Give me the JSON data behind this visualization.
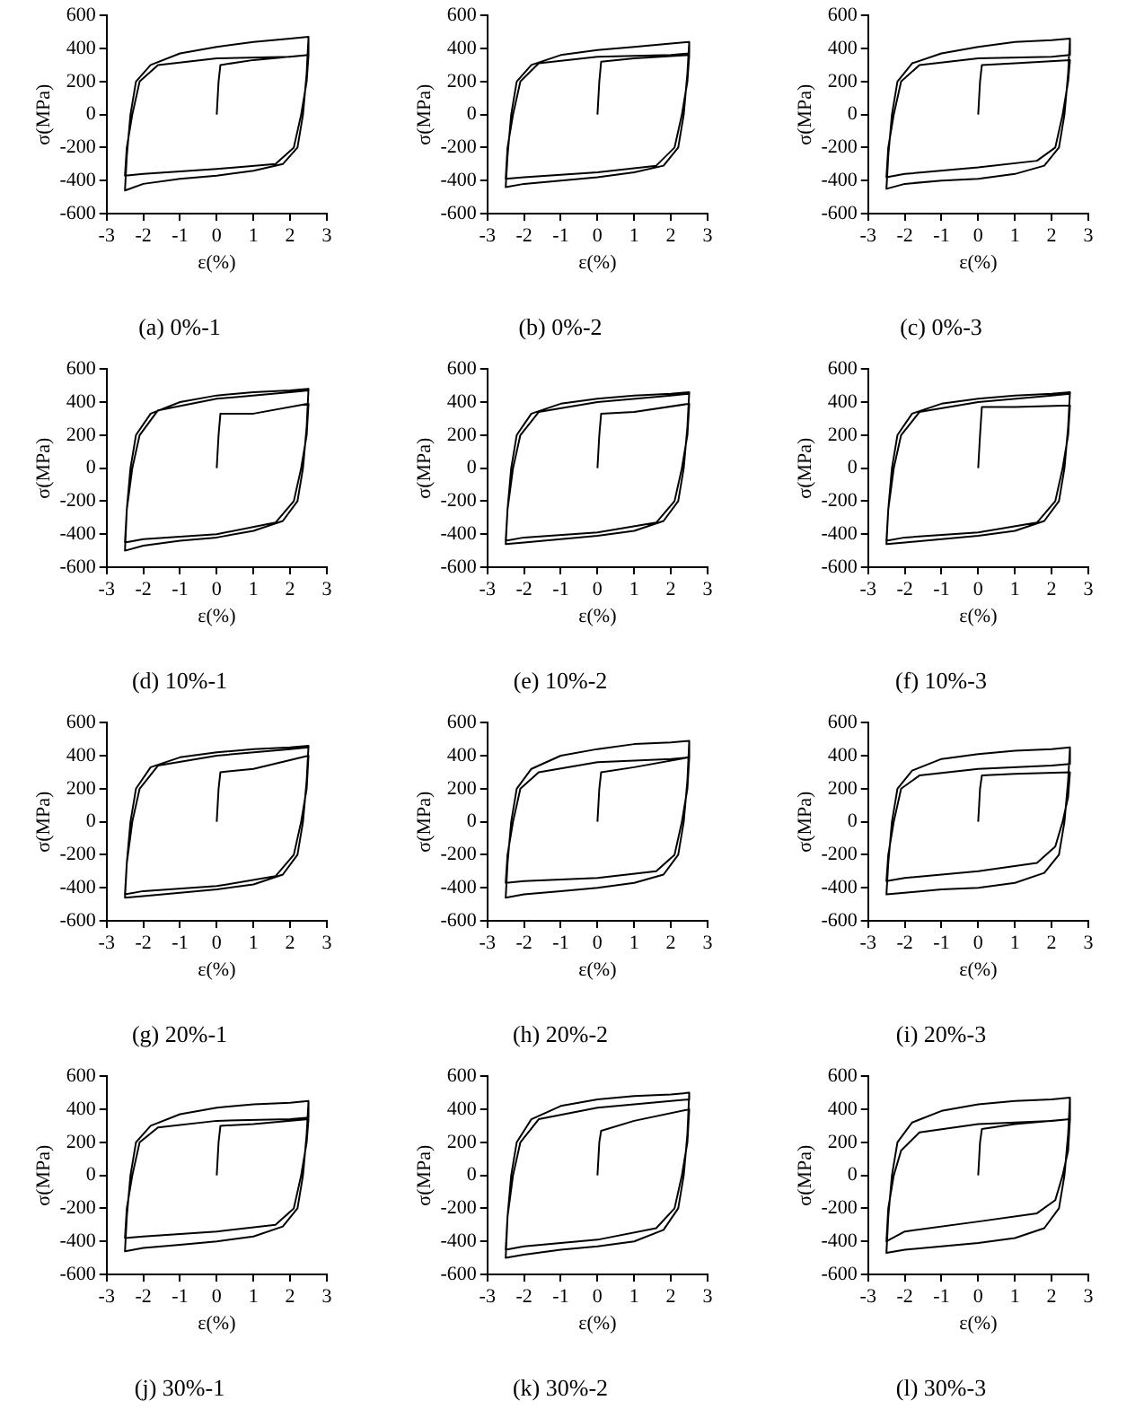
{
  "chart_data": [
    {
      "type": "line",
      "title": "(a) 0%-1",
      "xlabel": "ε(%)",
      "ylabel": "σ(MPa)",
      "xlim": [
        -3,
        3
      ],
      "ylim": [
        -600,
        600
      ],
      "xticks": [
        -3,
        -2,
        -1,
        0,
        1,
        2,
        3
      ],
      "yticks": [
        -600,
        -400,
        -200,
        0,
        200,
        400,
        600
      ],
      "grid": false,
      "legend": false,
      "marker": "none",
      "line_style": "solid",
      "series": [
        {
          "color": "#000000",
          "x": [
            0,
            0.05,
            0.1,
            1,
            2.5,
            2.45,
            2.3,
            2.1,
            1.6,
            0,
            -2,
            -2.5,
            -2.45,
            -2.3,
            -2.1,
            -1.6,
            0,
            2,
            2.5,
            2.5,
            2.45,
            2.35,
            2.2,
            1.8,
            1,
            0,
            -1,
            -2,
            -2.5,
            -2.45,
            -2.35,
            -2.2,
            -1.8,
            -1,
            0,
            1,
            2,
            2.5
          ],
          "values": [
            0,
            200,
            300,
            330,
            360,
            200,
            0,
            -200,
            -300,
            -330,
            -360,
            -370,
            -200,
            0,
            200,
            300,
            340,
            350,
            360,
            470,
            250,
            0,
            -200,
            -300,
            -340,
            -370,
            -390,
            -420,
            -460,
            -250,
            0,
            200,
            300,
            370,
            410,
            440,
            460,
            470
          ]
        }
      ]
    },
    {
      "type": "line",
      "title": "(b) 0%-2",
      "xlabel": "ε(%)",
      "ylabel": "σ(MPa)",
      "xlim": [
        -3,
        3
      ],
      "ylim": [
        -600,
        600
      ],
      "xticks": [
        -3,
        -2,
        -1,
        0,
        1,
        2,
        3
      ],
      "yticks": [
        -600,
        -400,
        -200,
        0,
        200,
        400,
        600
      ],
      "grid": false,
      "legend": false,
      "marker": "none",
      "line_style": "solid",
      "series": [
        {
          "color": "#000000",
          "x": [
            0,
            0.05,
            0.1,
            1,
            2.5,
            2.45,
            2.3,
            2.1,
            1.6,
            0,
            -2,
            -2.5,
            -2.45,
            -2.3,
            -2.1,
            -1.6,
            0,
            2,
            2.5,
            2.5,
            2.45,
            2.35,
            2.2,
            1.8,
            1,
            0,
            -1,
            -2,
            -2.5,
            -2.45,
            -2.35,
            -2.2,
            -1.8,
            -1,
            0,
            1,
            2,
            2.5
          ],
          "values": [
            0,
            200,
            320,
            340,
            360,
            200,
            0,
            -200,
            -310,
            -350,
            -380,
            -390,
            -200,
            0,
            200,
            310,
            350,
            360,
            370,
            440,
            250,
            0,
            -200,
            -310,
            -350,
            -380,
            -400,
            -420,
            -440,
            -250,
            0,
            200,
            300,
            360,
            390,
            410,
            430,
            440
          ]
        }
      ]
    },
    {
      "type": "line",
      "title": "(c) 0%-3",
      "xlabel": "ε(%)",
      "ylabel": "σ(MPa)",
      "xlim": [
        -3,
        3
      ],
      "ylim": [
        -600,
        600
      ],
      "xticks": [
        -3,
        -2,
        -1,
        0,
        1,
        2,
        3
      ],
      "yticks": [
        -600,
        -400,
        -200,
        0,
        200,
        400,
        600
      ],
      "grid": false,
      "legend": false,
      "marker": "none",
      "line_style": "solid",
      "series": [
        {
          "color": "#000000",
          "x": [
            0,
            0.05,
            0.1,
            1,
            2.5,
            2.45,
            2.3,
            2.1,
            1.6,
            0,
            -2,
            -2.5,
            -2.45,
            -2.3,
            -2.1,
            -1.6,
            0,
            2,
            2.5,
            2.5,
            2.45,
            2.35,
            2.2,
            1.8,
            1,
            0,
            -1,
            -2,
            -2.5,
            -2.45,
            -2.35,
            -2.2,
            -1.8,
            -1,
            0,
            1,
            2,
            2.5
          ],
          "values": [
            0,
            200,
            300,
            310,
            330,
            200,
            0,
            -200,
            -280,
            -320,
            -360,
            -380,
            -200,
            0,
            200,
            300,
            340,
            350,
            360,
            460,
            250,
            0,
            -200,
            -310,
            -360,
            -390,
            -400,
            -420,
            -450,
            -250,
            0,
            200,
            310,
            370,
            410,
            440,
            450,
            460
          ]
        }
      ]
    },
    {
      "type": "line",
      "title": "(d) 10%-1",
      "xlabel": "ε(%)",
      "ylabel": "σ(MPa)",
      "xlim": [
        -3,
        3
      ],
      "ylim": [
        -600,
        600
      ],
      "xticks": [
        -3,
        -2,
        -1,
        0,
        1,
        2,
        3
      ],
      "yticks": [
        -600,
        -400,
        -200,
        0,
        200,
        400,
        600
      ],
      "grid": false,
      "legend": false,
      "marker": "none",
      "line_style": "solid",
      "series": [
        {
          "color": "#000000",
          "x": [
            0,
            0.05,
            0.1,
            1,
            2.5,
            2.45,
            2.3,
            2.1,
            1.6,
            0,
            -2,
            -2.5,
            -2.45,
            -2.3,
            -2.1,
            -1.6,
            0,
            2,
            2.5,
            2.5,
            2.45,
            2.35,
            2.2,
            1.8,
            1,
            0,
            -1,
            -2,
            -2.5,
            -2.45,
            -2.35,
            -2.2,
            -1.8,
            -1,
            0,
            1,
            2,
            2.5
          ],
          "values": [
            0,
            200,
            330,
            330,
            390,
            200,
            0,
            -200,
            -330,
            -400,
            -430,
            -450,
            -250,
            0,
            200,
            350,
            420,
            460,
            470,
            480,
            250,
            0,
            -200,
            -320,
            -380,
            -420,
            -440,
            -470,
            -500,
            -250,
            0,
            200,
            330,
            400,
            440,
            460,
            470,
            480
          ]
        }
      ]
    },
    {
      "type": "line",
      "title": "(e) 10%-2",
      "xlabel": "ε(%)",
      "ylabel": "σ(MPa)",
      "xlim": [
        -3,
        3
      ],
      "ylim": [
        -600,
        600
      ],
      "xticks": [
        -3,
        -2,
        -1,
        0,
        1,
        2,
        3
      ],
      "yticks": [
        -600,
        -400,
        -200,
        0,
        200,
        400,
        600
      ],
      "grid": false,
      "legend": false,
      "marker": "none",
      "line_style": "solid",
      "series": [
        {
          "color": "#000000",
          "x": [
            0,
            0.05,
            0.1,
            1,
            2.5,
            2.45,
            2.3,
            2.1,
            1.6,
            0,
            -2,
            -2.5,
            -2.45,
            -2.3,
            -2.1,
            -1.6,
            0,
            2,
            2.5,
            2.5,
            2.45,
            2.35,
            2.2,
            1.8,
            1,
            0,
            -1,
            -2,
            -2.5,
            -2.45,
            -2.35,
            -2.2,
            -1.8,
            -1,
            0,
            1,
            2,
            2.5
          ],
          "values": [
            0,
            200,
            330,
            340,
            390,
            200,
            0,
            -200,
            -330,
            -390,
            -420,
            -440,
            -250,
            0,
            200,
            340,
            400,
            440,
            450,
            460,
            250,
            0,
            -200,
            -320,
            -380,
            -410,
            -430,
            -450,
            -460,
            -250,
            0,
            200,
            330,
            390,
            420,
            440,
            450,
            460
          ]
        }
      ]
    },
    {
      "type": "line",
      "title": "(f) 10%-3",
      "xlabel": "ε(%)",
      "ylabel": "σ(MPa)",
      "xlim": [
        -3,
        3
      ],
      "ylim": [
        -600,
        600
      ],
      "xticks": [
        -3,
        -2,
        -1,
        0,
        1,
        2,
        3
      ],
      "yticks": [
        -600,
        -400,
        -200,
        0,
        200,
        400,
        600
      ],
      "grid": false,
      "legend": false,
      "marker": "none",
      "line_style": "solid",
      "series": [
        {
          "color": "#000000",
          "x": [
            0,
            0.05,
            0.1,
            1,
            2.5,
            2.45,
            2.3,
            2.1,
            1.6,
            0,
            -2,
            -2.5,
            -2.45,
            -2.3,
            -2.1,
            -1.6,
            0,
            2,
            2.5,
            2.5,
            2.45,
            2.35,
            2.2,
            1.8,
            1,
            0,
            -1,
            -2,
            -2.5,
            -2.45,
            -2.35,
            -2.2,
            -1.8,
            -1,
            0,
            1,
            2,
            2.5
          ],
          "values": [
            0,
            200,
            370,
            370,
            380,
            200,
            0,
            -200,
            -330,
            -390,
            -420,
            -440,
            -250,
            0,
            200,
            340,
            400,
            440,
            450,
            460,
            250,
            0,
            -200,
            -320,
            -380,
            -410,
            -430,
            -450,
            -460,
            -250,
            0,
            200,
            330,
            390,
            420,
            440,
            450,
            460
          ]
        }
      ]
    },
    {
      "type": "line",
      "title": "(g) 20%-1",
      "xlabel": "ε(%)",
      "ylabel": "σ(MPa)",
      "xlim": [
        -3,
        3
      ],
      "ylim": [
        -600,
        600
      ],
      "xticks": [
        -3,
        -2,
        -1,
        0,
        1,
        2,
        3
      ],
      "yticks": [
        -600,
        -400,
        -200,
        0,
        200,
        400,
        600
      ],
      "grid": false,
      "legend": false,
      "marker": "none",
      "line_style": "solid",
      "series": [
        {
          "color": "#000000",
          "x": [
            0,
            0.05,
            0.1,
            1,
            2.5,
            2.45,
            2.3,
            2.1,
            1.6,
            0,
            -2,
            -2.5,
            -2.45,
            -2.3,
            -2.1,
            -1.6,
            0,
            2,
            2.5,
            2.5,
            2.45,
            2.35,
            2.2,
            1.8,
            1,
            0,
            -1,
            -2,
            -2.5,
            -2.45,
            -2.35,
            -2.2,
            -1.8,
            -1,
            0,
            1,
            2,
            2.5
          ],
          "values": [
            0,
            200,
            300,
            320,
            400,
            200,
            0,
            -200,
            -330,
            -390,
            -420,
            -440,
            -250,
            0,
            200,
            340,
            400,
            440,
            450,
            460,
            250,
            0,
            -200,
            -320,
            -380,
            -410,
            -430,
            -450,
            -460,
            -250,
            0,
            200,
            330,
            390,
            420,
            440,
            450,
            460
          ]
        }
      ]
    },
    {
      "type": "line",
      "title": "(h) 20%-2",
      "xlabel": "ε(%)",
      "ylabel": "σ(MPa)",
      "xlim": [
        -3,
        3
      ],
      "ylim": [
        -600,
        600
      ],
      "xticks": [
        -3,
        -2,
        -1,
        0,
        1,
        2,
        3
      ],
      "yticks": [
        -600,
        -400,
        -200,
        0,
        200,
        400,
        600
      ],
      "grid": false,
      "legend": false,
      "marker": "none",
      "line_style": "solid",
      "series": [
        {
          "color": "#000000",
          "x": [
            0,
            0.05,
            0.1,
            1,
            2.5,
            2.45,
            2.3,
            2.1,
            1.6,
            0,
            -2,
            -2.5,
            -2.45,
            -2.3,
            -2.1,
            -1.6,
            0,
            2,
            2.5,
            2.5,
            2.45,
            2.35,
            2.2,
            1.8,
            1,
            0,
            -1,
            -2,
            -2.5,
            -2.45,
            -2.35,
            -2.2,
            -1.8,
            -1,
            0,
            1,
            2,
            2.5
          ],
          "values": [
            0,
            200,
            300,
            330,
            390,
            200,
            0,
            -200,
            -300,
            -340,
            -360,
            -370,
            -200,
            0,
            200,
            300,
            360,
            380,
            390,
            490,
            250,
            0,
            -200,
            -320,
            -370,
            -400,
            -420,
            -440,
            -460,
            -250,
            0,
            200,
            320,
            400,
            440,
            470,
            480,
            490
          ]
        }
      ]
    },
    {
      "type": "line",
      "title": "(i) 20%-3",
      "xlabel": "ε(%)",
      "ylabel": "σ(MPa)",
      "xlim": [
        -3,
        3
      ],
      "ylim": [
        -600,
        600
      ],
      "xticks": [
        -3,
        -2,
        -1,
        0,
        1,
        2,
        3
      ],
      "yticks": [
        -600,
        -400,
        -200,
        0,
        200,
        400,
        600
      ],
      "grid": false,
      "legend": false,
      "marker": "none",
      "line_style": "solid",
      "series": [
        {
          "color": "#000000",
          "x": [
            0,
            0.05,
            0.1,
            1,
            2.5,
            2.45,
            2.3,
            2.1,
            1.6,
            0,
            -2,
            -2.5,
            -2.45,
            -2.3,
            -2.1,
            -1.6,
            0,
            2,
            2.5,
            2.5,
            2.45,
            2.35,
            2.2,
            1.8,
            1,
            0,
            -1,
            -2,
            -2.5,
            -2.45,
            -2.35,
            -2.2,
            -1.8,
            -1,
            0,
            1,
            2,
            2.5
          ],
          "values": [
            0,
            200,
            280,
            290,
            300,
            150,
            0,
            -150,
            -250,
            -300,
            -340,
            -360,
            -200,
            0,
            200,
            280,
            320,
            340,
            350,
            450,
            250,
            0,
            -200,
            -310,
            -370,
            -400,
            -410,
            -430,
            -440,
            -250,
            0,
            200,
            310,
            380,
            410,
            430,
            440,
            450
          ]
        }
      ]
    },
    {
      "type": "line",
      "title": "(j) 30%-1",
      "xlabel": "ε(%)",
      "ylabel": "σ(MPa)",
      "xlim": [
        -3,
        3
      ],
      "ylim": [
        -600,
        600
      ],
      "xticks": [
        -3,
        -2,
        -1,
        0,
        1,
        2,
        3
      ],
      "yticks": [
        -600,
        -400,
        -200,
        0,
        200,
        400,
        600
      ],
      "grid": false,
      "legend": false,
      "marker": "none",
      "line_style": "solid",
      "series": [
        {
          "color": "#000000",
          "x": [
            0,
            0.05,
            0.1,
            1,
            2.5,
            2.45,
            2.3,
            2.1,
            1.6,
            0,
            -2,
            -2.5,
            -2.45,
            -2.3,
            -2.1,
            -1.6,
            0,
            2,
            2.5,
            2.5,
            2.45,
            2.35,
            2.2,
            1.8,
            1,
            0,
            -1,
            -2,
            -2.5,
            -2.45,
            -2.35,
            -2.2,
            -1.8,
            -1,
            0,
            1,
            2,
            2.5
          ],
          "values": [
            0,
            200,
            300,
            310,
            340,
            200,
            0,
            -200,
            -300,
            -340,
            -370,
            -380,
            -200,
            0,
            200,
            290,
            330,
            340,
            350,
            450,
            250,
            0,
            -200,
            -310,
            -370,
            -400,
            -420,
            -440,
            -460,
            -250,
            0,
            200,
            300,
            370,
            410,
            430,
            440,
            450
          ]
        }
      ]
    },
    {
      "type": "line",
      "title": "(k) 30%-2",
      "xlabel": "ε(%)",
      "ylabel": "σ(MPa)",
      "xlim": [
        -3,
        3
      ],
      "ylim": [
        -600,
        600
      ],
      "xticks": [
        -3,
        -2,
        -1,
        0,
        1,
        2,
        3
      ],
      "yticks": [
        -600,
        -400,
        -200,
        0,
        200,
        400,
        600
      ],
      "grid": false,
      "legend": false,
      "marker": "none",
      "line_style": "solid",
      "series": [
        {
          "color": "#000000",
          "x": [
            0,
            0.05,
            0.1,
            1,
            2.5,
            2.45,
            2.3,
            2.1,
            1.6,
            0,
            -2,
            -2.5,
            -2.45,
            -2.3,
            -2.1,
            -1.6,
            0,
            2,
            2.5,
            2.5,
            2.45,
            2.35,
            2.2,
            1.8,
            1,
            0,
            -1,
            -2,
            -2.5,
            -2.45,
            -2.35,
            -2.2,
            -1.8,
            -1,
            0,
            1,
            2,
            2.5
          ],
          "values": [
            0,
            200,
            270,
            330,
            400,
            200,
            0,
            -200,
            -320,
            -390,
            -430,
            -450,
            -250,
            0,
            200,
            340,
            410,
            450,
            460,
            500,
            250,
            0,
            -200,
            -330,
            -400,
            -430,
            -450,
            -480,
            -500,
            -250,
            0,
            200,
            340,
            420,
            460,
            480,
            490,
            500
          ]
        }
      ]
    },
    {
      "type": "line",
      "title": "(l) 30%-3",
      "xlabel": "ε(%)",
      "ylabel": "σ(MPa)",
      "xlim": [
        -3,
        3
      ],
      "ylim": [
        -600,
        600
      ],
      "xticks": [
        -3,
        -2,
        -1,
        0,
        1,
        2,
        3
      ],
      "yticks": [
        -600,
        -400,
        -200,
        0,
        200,
        400,
        600
      ],
      "grid": false,
      "legend": false,
      "marker": "none",
      "line_style": "solid",
      "series": [
        {
          "color": "#000000",
          "x": [
            0,
            0.05,
            0.1,
            1,
            2.5,
            2.45,
            2.3,
            2.1,
            1.6,
            0,
            -2,
            -2.5,
            -2.45,
            -2.3,
            -2.1,
            -1.6,
            0,
            2,
            2.5,
            2.5,
            2.45,
            2.35,
            2.2,
            1.8,
            1,
            0,
            -1,
            -2,
            -2.5,
            -2.45,
            -2.35,
            -2.2,
            -1.8,
            -1,
            0,
            1,
            2,
            2.5
          ],
          "values": [
            0,
            200,
            280,
            310,
            340,
            150,
            0,
            -150,
            -230,
            -280,
            -340,
            -400,
            -200,
            0,
            150,
            260,
            310,
            330,
            340,
            470,
            250,
            0,
            -200,
            -320,
            -380,
            -410,
            -430,
            -450,
            -470,
            -250,
            0,
            200,
            320,
            390,
            430,
            450,
            460,
            470
          ]
        }
      ]
    }
  ]
}
